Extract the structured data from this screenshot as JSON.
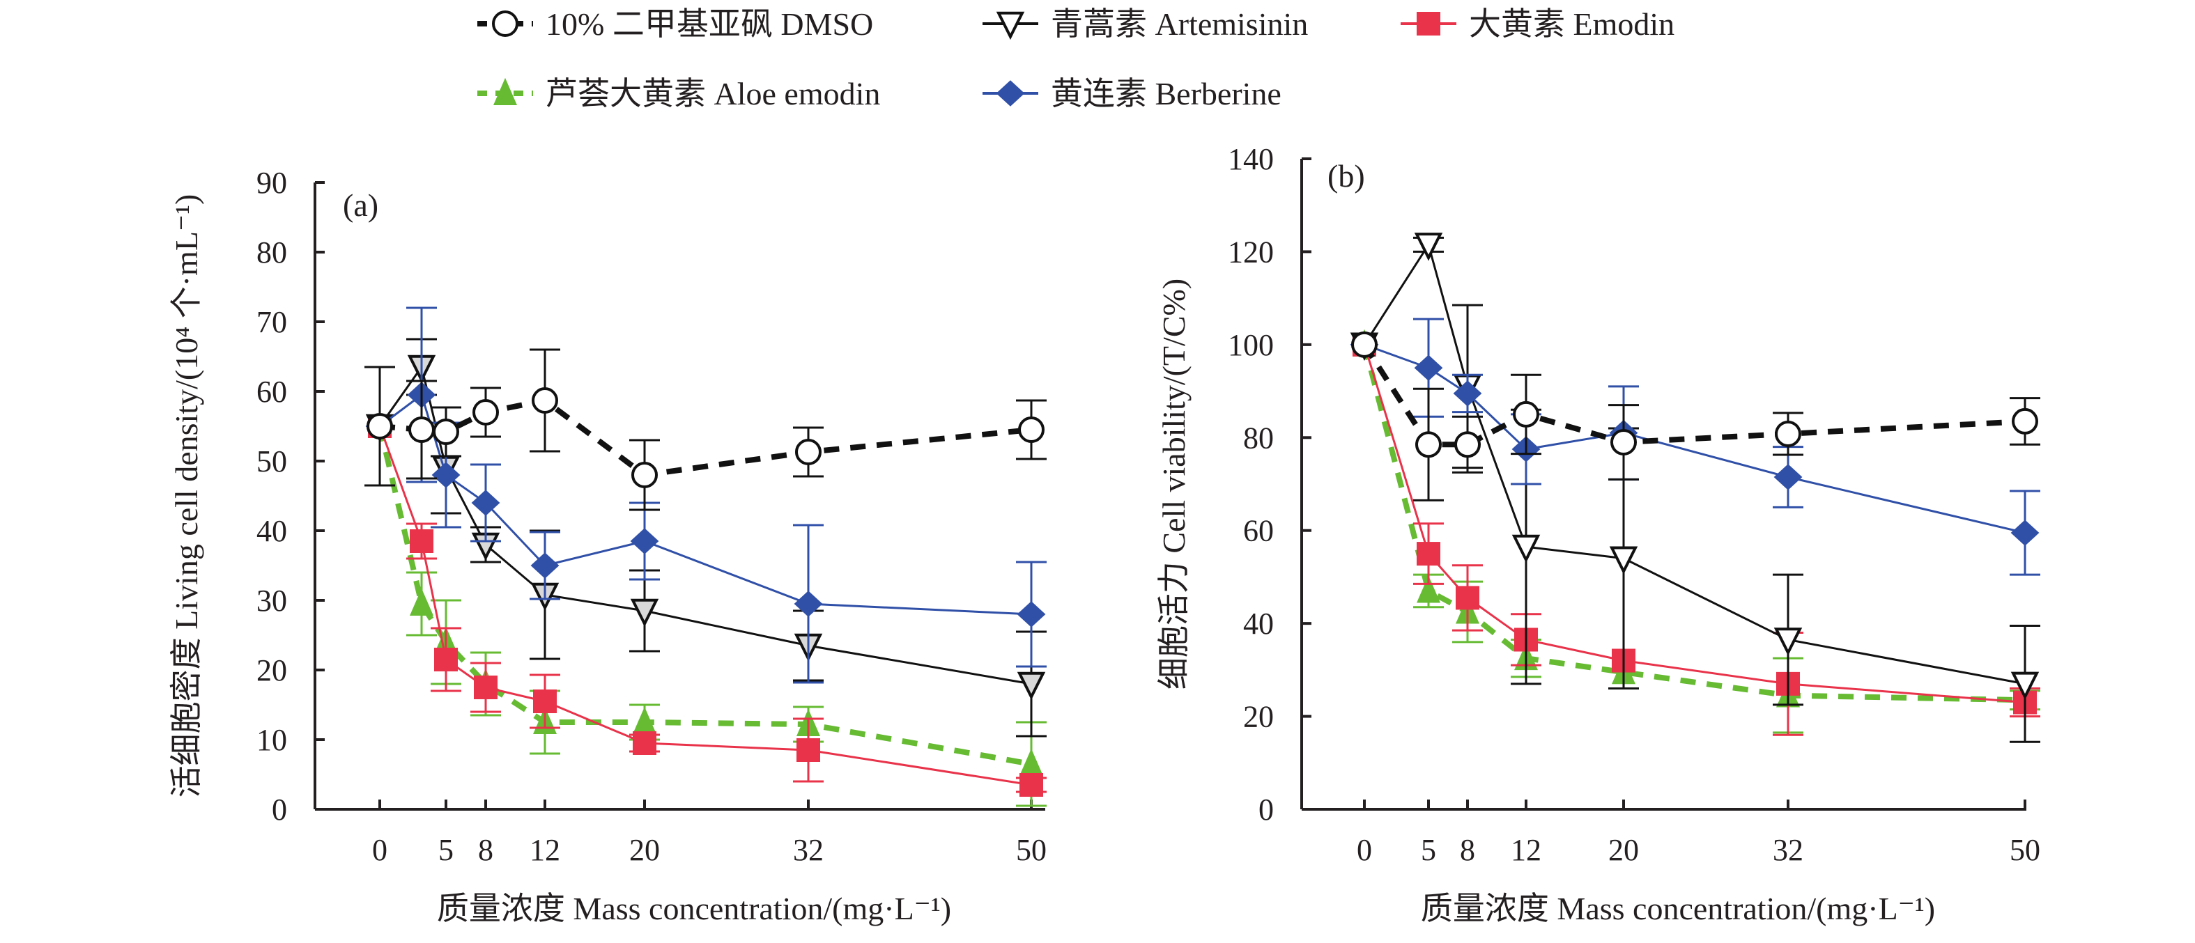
{
  "legend": [
    {
      "key": "dmso",
      "label": "10% 二甲基亚砜 DMSO",
      "color": "#000000",
      "marker": "circle-open",
      "dash": "dashed-thick"
    },
    {
      "key": "artemisinin",
      "label": "青蒿素 Artemisinin",
      "color": "#000000",
      "marker": "triangle-down-open",
      "dash": "solid"
    },
    {
      "key": "emodin",
      "label": "大黄素 Emodin",
      "color": "#e8334a",
      "marker": "square",
      "dash": "solid"
    },
    {
      "key": "aloe",
      "label": "芦荟大黄素 Aloe emodin",
      "color": "#66bb33",
      "marker": "triangle-up",
      "dash": "dashed-thick"
    },
    {
      "key": "berberine",
      "label": "黄连素 Berberine",
      "color": "#3050a8",
      "marker": "diamond",
      "dash": "solid"
    }
  ],
  "chart_data": [
    {
      "type": "line",
      "panel_label": "(a)",
      "title": "",
      "xlabel": "质量浓度 Mass concentration/(mg·L⁻¹)",
      "ylabel": "活细胞密度 Living cell density/(10⁴ 个·mL⁻¹)",
      "x_tick_labels": [
        "0",
        "5",
        "8",
        "12",
        "20",
        "32",
        "50"
      ],
      "x_ticks": [
        0,
        5,
        8,
        12,
        20,
        32,
        50
      ],
      "ylim": [
        0,
        90
      ],
      "y_ticks": [
        0,
        10,
        20,
        30,
        40,
        50,
        60,
        70,
        80,
        90
      ],
      "grid": false,
      "legend_position": "top",
      "series": [
        {
          "key": "dmso",
          "name": "10% 二甲基亚砜 DMSO",
          "x": [
            0,
            3,
            5,
            8,
            12,
            20,
            32,
            50
          ],
          "y": [
            55,
            54.5,
            54.2,
            57,
            58.7,
            48,
            51.3,
            54.5
          ],
          "err": [
            8.5,
            7,
            3.5,
            3.5,
            7.3,
            5,
            3.5,
            4.2
          ]
        },
        {
          "key": "artemisinin",
          "name": "青蒿素 Artemisinin",
          "x": [
            0,
            3,
            5,
            8,
            12,
            20,
            32,
            50
          ],
          "y": [
            55,
            63.5,
            49,
            38,
            30.8,
            28.5,
            23.5,
            18
          ],
          "err": [
            0,
            4,
            6.5,
            2.5,
            9.2,
            5.8,
            5,
            7.5
          ]
        },
        {
          "key": "emodin",
          "name": "大黄素 Emodin",
          "x": [
            0,
            3,
            5,
            8,
            12,
            20,
            32,
            50
          ],
          "y": [
            55,
            38.5,
            21.5,
            17.5,
            15.5,
            9.5,
            8.5,
            3.5
          ],
          "err": [
            0,
            2.5,
            4.5,
            3.5,
            3.8,
            1.2,
            4.5,
            1
          ]
        },
        {
          "key": "aloe",
          "name": "芦荟大黄素 Aloe emodin",
          "x": [
            0,
            3,
            5,
            8,
            12,
            20,
            32,
            50
          ],
          "y": [
            55,
            29.5,
            24,
            18,
            12.5,
            12.5,
            12.2,
            6.5
          ],
          "err": [
            0,
            4.5,
            6,
            4.5,
            4.5,
            2.5,
            2.5,
            6
          ]
        },
        {
          "key": "berberine",
          "name": "黄连素 Berberine",
          "x": [
            0,
            3,
            5,
            8,
            12,
            20,
            32,
            50
          ],
          "y": [
            55,
            59.5,
            48,
            44,
            35,
            38.5,
            29.5,
            28
          ],
          "err": [
            0,
            12.5,
            7.5,
            5.5,
            4.8,
            5.5,
            11.3,
            7.5
          ]
        }
      ]
    },
    {
      "type": "line",
      "panel_label": "(b)",
      "title": "",
      "xlabel": "质量浓度 Mass concentration/(mg·L⁻¹)",
      "ylabel": "细胞活力 Cell viability/(T/C%)",
      "x_tick_labels": [
        "0",
        "5",
        "8",
        "12",
        "20",
        "32",
        "50"
      ],
      "x_ticks": [
        0,
        5,
        8,
        12,
        20,
        32,
        50
      ],
      "ylim": [
        0,
        140
      ],
      "y_ticks": [
        0,
        20,
        40,
        60,
        80,
        100,
        120,
        140
      ],
      "grid": false,
      "legend_position": "top",
      "series": [
        {
          "key": "dmso",
          "name": "10% 二甲基亚砜 DMSO",
          "x": [
            0,
            5,
            8,
            12,
            20,
            32,
            50
          ],
          "y": [
            100,
            78.5,
            78.5,
            85,
            79,
            80.8,
            83.5
          ],
          "err": [
            0,
            12,
            6,
            8.5,
            8,
            4.5,
            5
          ]
        },
        {
          "key": "artemisinin",
          "name": "青蒿素 Artemisinin",
          "x": [
            0,
            5,
            8,
            12,
            20,
            32,
            50
          ],
          "y": [
            100,
            121.5,
            91,
            56.5,
            54,
            36.5,
            27
          ],
          "err": [
            0,
            1.5,
            17.5,
            29.5,
            28,
            14,
            12.5
          ]
        },
        {
          "key": "emodin",
          "name": "大黄素 Emodin",
          "x": [
            0,
            5,
            8,
            12,
            20,
            32,
            50
          ],
          "y": [
            100,
            55,
            45.5,
            36.5,
            32,
            27,
            23
          ],
          "err": [
            0,
            6.5,
            7,
            5.5,
            0,
            11,
            3
          ]
        },
        {
          "key": "aloe",
          "name": "芦荟大黄素 Aloe emodin",
          "x": [
            0,
            5,
            8,
            12,
            20,
            32,
            50
          ],
          "y": [
            100,
            47,
            42.5,
            32.5,
            29.5,
            24.5,
            23.5
          ],
          "err": [
            0,
            3.5,
            6.5,
            4,
            0,
            8,
            2
          ]
        },
        {
          "key": "berberine",
          "name": "黄连素 Berberine",
          "x": [
            0,
            5,
            8,
            12,
            20,
            32,
            50
          ],
          "y": [
            100,
            95,
            89.5,
            77.5,
            81,
            71.5,
            59.5
          ],
          "err": [
            0,
            10.5,
            4,
            7.5,
            10,
            6.5,
            9
          ]
        }
      ]
    }
  ]
}
